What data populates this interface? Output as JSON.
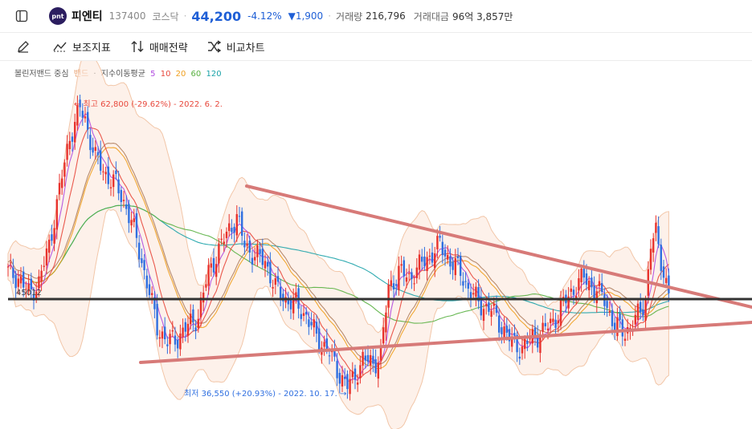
{
  "header": {
    "stock_name": "피엔티",
    "logo_text": "pnt",
    "code": "137400",
    "market": "코스닥",
    "price": "44,200",
    "change_pct": "-4.12%",
    "change_amt": "▼1,900",
    "volume_label": "거래량",
    "volume": "216,796",
    "amount_label": "거래대금",
    "amount": "96억 3,857만"
  },
  "toolbar": {
    "indicators_label": "보조지표",
    "trade_strategy_label": "매매전략",
    "compare_label": "비교차트"
  },
  "legend": {
    "bollinger": "볼린저밴드 중심",
    "band": "밴드",
    "ma_label": "지수이동평균",
    "ma_periods": [
      "5",
      "10",
      "20",
      "60",
      "120"
    ],
    "ma_colors": [
      "#b04ae0",
      "#e8483c",
      "#f0a020",
      "#58b040",
      "#1aa2a8"
    ]
  },
  "chart_data": {
    "type": "candlestick",
    "annotations": {
      "high": "최고 62,800 (-29.62%) - 2022. 6. 2.",
      "low": "최저 36,550 (+20.93%) - 2022. 10. 17."
    },
    "horizontal_line_label": "45012",
    "colors": {
      "up": "#e8332d",
      "down": "#2f6fe0",
      "band_fill": "#fbe6d9",
      "trendline": "#d77a78"
    },
    "close_path": [
      [
        0,
        47500
      ],
      [
        4,
        47000
      ],
      [
        8,
        45500
      ],
      [
        12,
        46500
      ],
      [
        16,
        50000
      ],
      [
        20,
        55000
      ],
      [
        24,
        60000
      ],
      [
        28,
        62500
      ],
      [
        30,
        61500
      ],
      [
        34,
        58000
      ],
      [
        38,
        56500
      ],
      [
        42,
        55500
      ],
      [
        46,
        53500
      ],
      [
        50,
        50500
      ],
      [
        54,
        46500
      ],
      [
        58,
        42500
      ],
      [
        62,
        41000
      ],
      [
        66,
        41500
      ],
      [
        70,
        42500
      ],
      [
        74,
        43500
      ],
      [
        78,
        47500
      ],
      [
        82,
        49500
      ],
      [
        86,
        51500
      ],
      [
        89,
        52500
      ],
      [
        92,
        50000
      ],
      [
        96,
        49000
      ],
      [
        100,
        48500
      ],
      [
        104,
        46000
      ],
      [
        108,
        45000
      ],
      [
        112,
        44500
      ],
      [
        116,
        43500
      ],
      [
        120,
        41500
      ],
      [
        124,
        40500
      ],
      [
        128,
        38500
      ],
      [
        132,
        37000
      ],
      [
        134,
        37500
      ],
      [
        138,
        39500
      ],
      [
        142,
        39000
      ],
      [
        145,
        40000
      ],
      [
        148,
        46000
      ],
      [
        152,
        47500
      ],
      [
        156,
        47000
      ],
      [
        160,
        48000
      ],
      [
        164,
        49000
      ],
      [
        168,
        50000
      ],
      [
        172,
        48500
      ],
      [
        176,
        47500
      ],
      [
        180,
        45500
      ],
      [
        184,
        44500
      ],
      [
        188,
        44000
      ],
      [
        192,
        42500
      ],
      [
        196,
        41000
      ],
      [
        200,
        40500
      ],
      [
        204,
        41500
      ],
      [
        208,
        42000
      ],
      [
        212,
        43000
      ],
      [
        216,
        44500
      ],
      [
        220,
        46000
      ],
      [
        224,
        47000
      ],
      [
        228,
        46000
      ],
      [
        232,
        45000
      ],
      [
        236,
        42500
      ],
      [
        240,
        42000
      ],
      [
        244,
        43000
      ],
      [
        248,
        45000
      ],
      [
        250,
        50000
      ],
      [
        252,
        51000
      ],
      [
        255,
        47500
      ],
      [
        257,
        45500
      ]
    ],
    "hline_value": 45012,
    "ylim": [
      34000,
      65000
    ]
  }
}
